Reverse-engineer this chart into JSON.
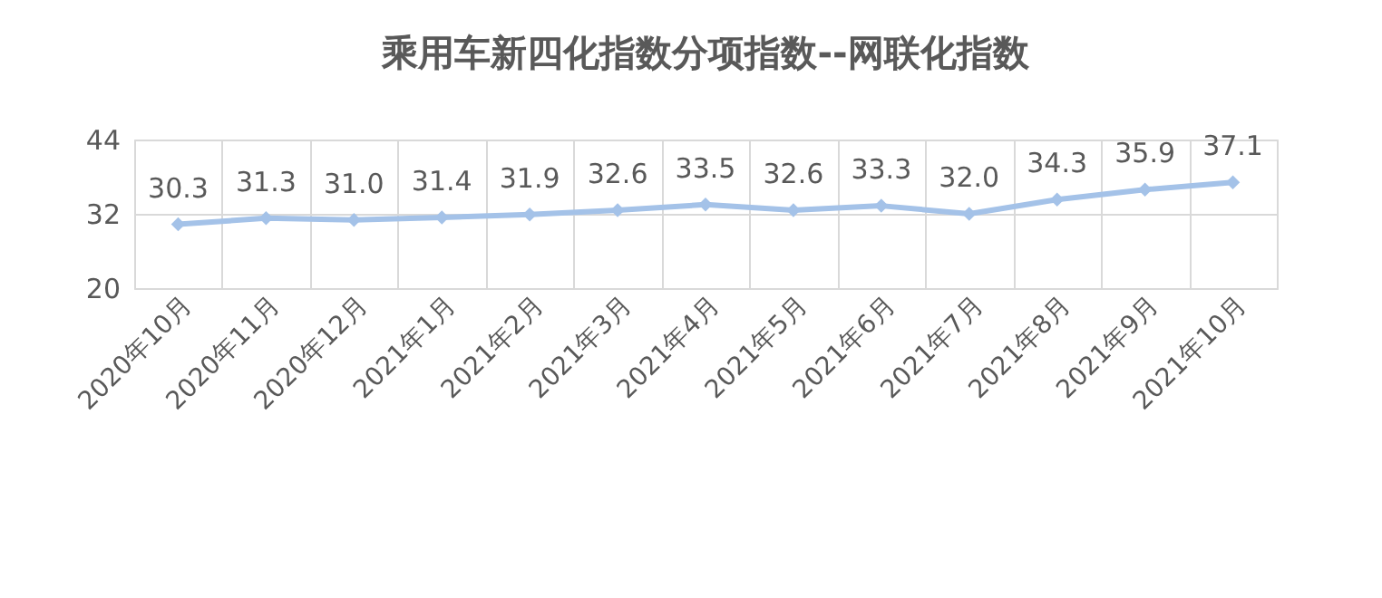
{
  "chart_data": {
    "type": "line",
    "title": "乘用车新四化指数分项指数--网联化指数",
    "categories": [
      "2020年10月",
      "2020年11月",
      "2020年12月",
      "2021年1月",
      "2021年2月",
      "2021年3月",
      "2021年4月",
      "2021年5月",
      "2021年6月",
      "2021年7月",
      "2021年8月",
      "2021年9月",
      "2021年10月"
    ],
    "values": [
      30.3,
      31.3,
      31.0,
      31.4,
      31.9,
      32.6,
      33.5,
      32.6,
      33.3,
      32.0,
      34.3,
      35.9,
      37.1
    ],
    "value_labels": [
      "30.3",
      "31.3",
      "31.0",
      "31.4",
      "31.9",
      "32.6",
      "33.5",
      "32.6",
      "33.3",
      "32.0",
      "34.3",
      "35.9",
      "37.1"
    ],
    "color": "#a4c2e8",
    "ylim": [
      20,
      44
    ],
    "yticks": [
      20,
      32,
      44
    ],
    "grid": true,
    "marker": "diamond"
  }
}
